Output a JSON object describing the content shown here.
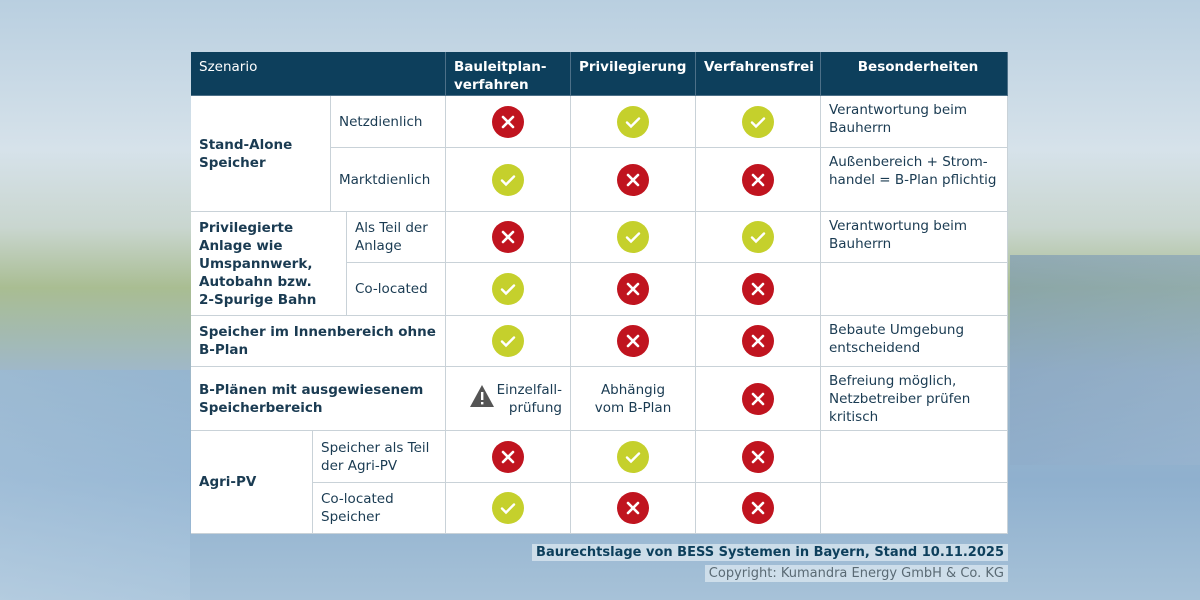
{
  "header": {
    "scenario": "Szenario",
    "columns": [
      "Bauleitplan-\nverfahren",
      "Privilegierung",
      "Verfahrensfrei",
      "Besonderheiten"
    ]
  },
  "groups": [
    {
      "label": "Stand-Alone\nSpeicher"
    },
    {
      "label": "Privilegierte\nAnlage wie\nUmspannwerk,\nAutobahn bzw.\n2-Spurige Bahn"
    },
    {
      "label": "Agri-PV"
    }
  ],
  "rows": [
    {
      "label": "Netzdienlich",
      "values": [
        "no",
        "yes",
        "yes"
      ],
      "note": "Verantwortung beim\nBauherrn"
    },
    {
      "label": "Marktdienlich",
      "values": [
        "yes",
        "no",
        "no"
      ],
      "note": "Außenbereich + Strom-\nhandel = B-Plan pflichtig"
    },
    {
      "label": "Als Teil der\nAnlage",
      "values": [
        "no",
        "yes",
        "yes"
      ],
      "note": "Verantwortung beim\nBauherrn"
    },
    {
      "label": "Co-located",
      "values": [
        "yes",
        "no",
        "no"
      ],
      "note": ""
    },
    {
      "label": "Speicher im Innenbereich ohne\nB-Plan",
      "values": [
        "yes",
        "no",
        "no"
      ],
      "note": "Bebaute Umgebung\nentscheidend"
    },
    {
      "label": "B-Plänen mit ausgewiesenem\nSpeicherbereich",
      "values": [
        "warning",
        "text",
        "no"
      ],
      "texts": [
        "Einzelfall-\nprüfung",
        "Abhängig\nvom B-Plan"
      ],
      "note": "Befreiung möglich,\nNetzbetreiber prüfen\nkritisch"
    },
    {
      "label": "Speicher als Teil\nder Agri-PV",
      "values": [
        "no",
        "yes",
        "no"
      ],
      "note": ""
    },
    {
      "label": "Co-located\nSpeicher",
      "values": [
        "yes",
        "no",
        "no"
      ],
      "note": ""
    }
  ],
  "caption": "Baurechtslage von BESS Systemen in Bayern, Stand 10.11.2025",
  "copyright": "Copyright: Kumandra Energy GmbH & Co. KG",
  "colors": {
    "header": "#0d3f5c",
    "no": "#c0141f",
    "yes": "#c5d02c"
  }
}
